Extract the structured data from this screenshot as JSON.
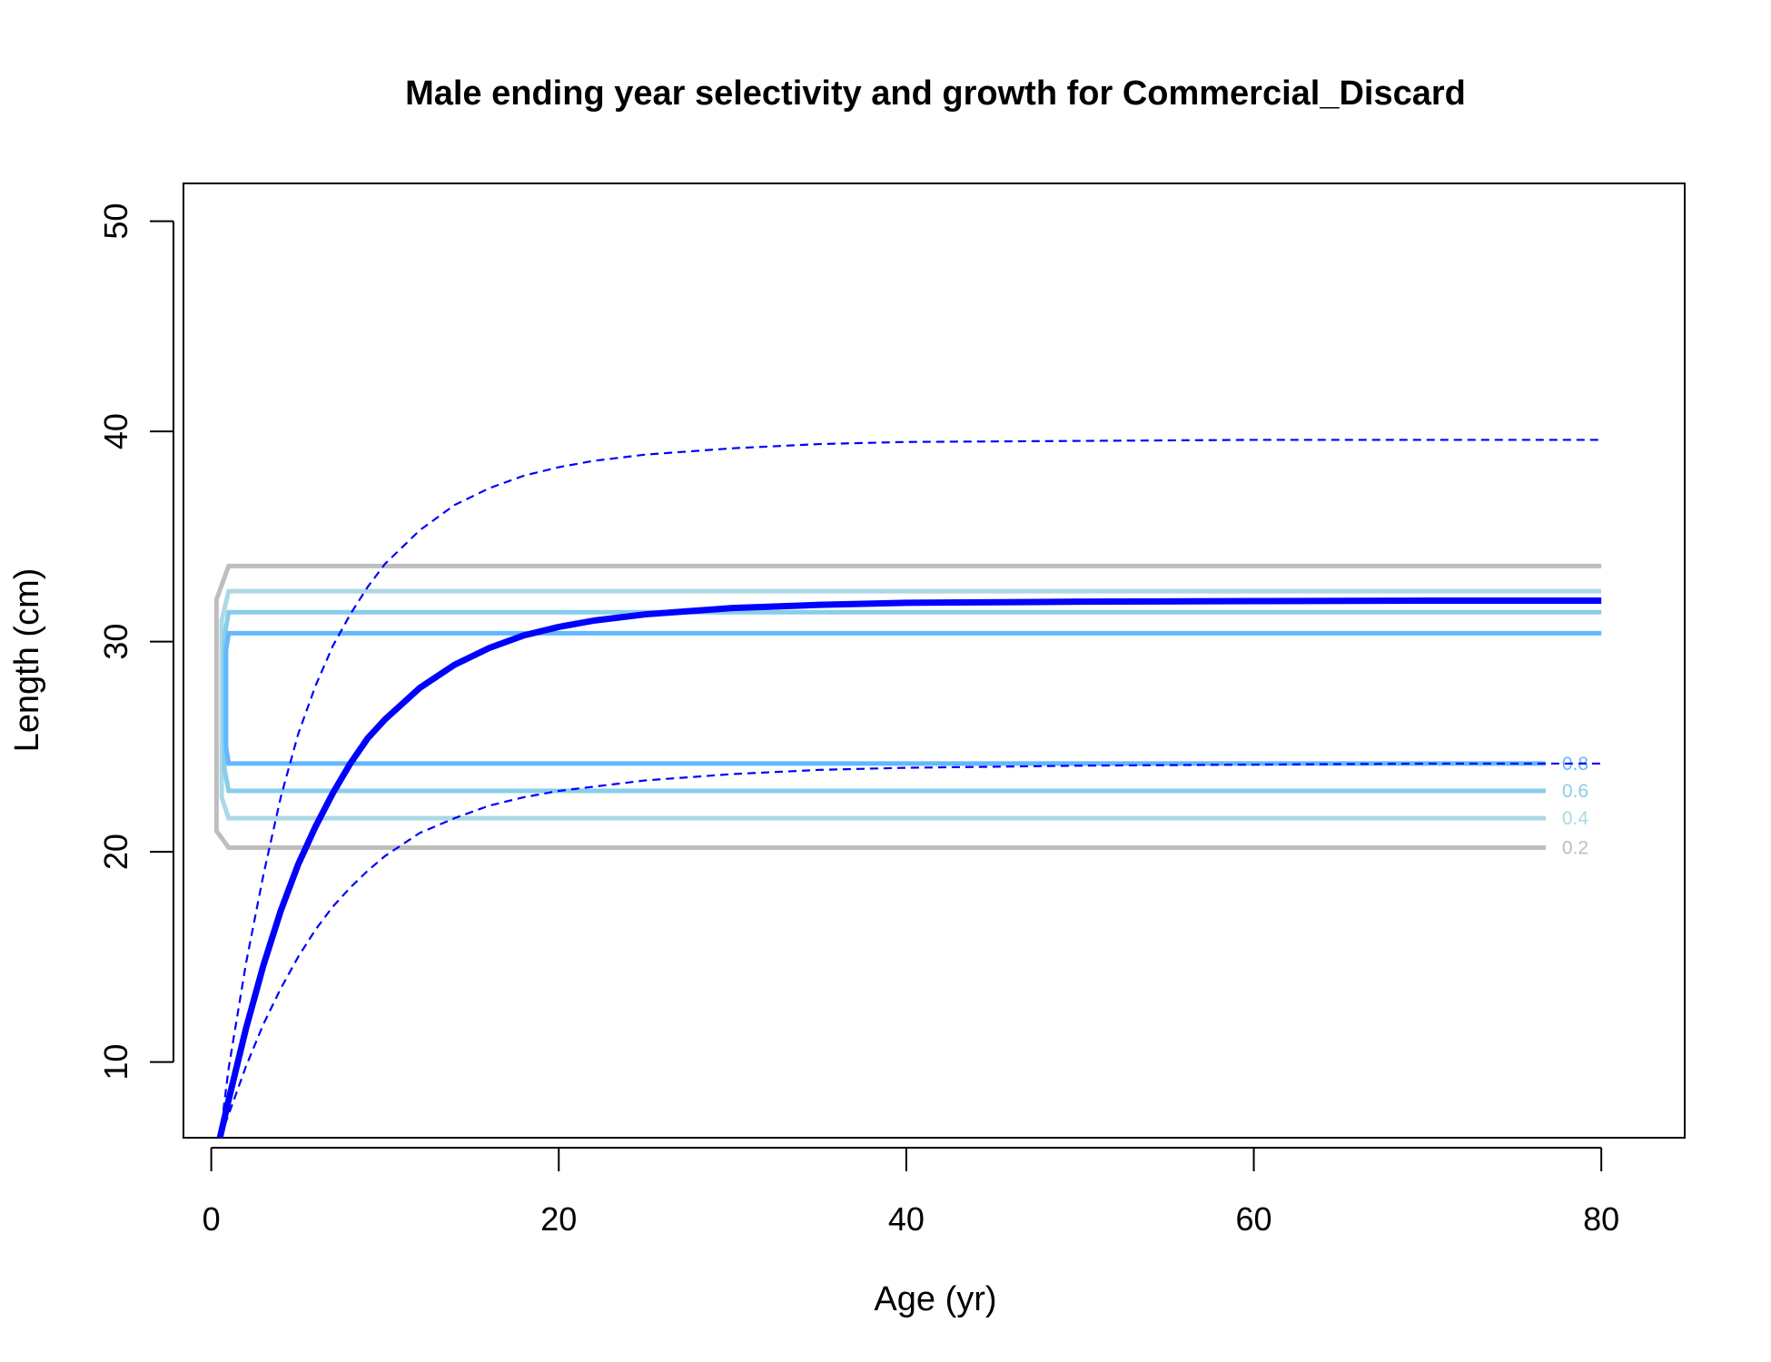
{
  "chart_data": {
    "type": "line",
    "title": "Male ending year selectivity and growth for Commercial_Discard",
    "xlabel": "Age (yr)",
    "ylabel": "Length (cm)",
    "xlim": [
      -1.6,
      84.8
    ],
    "ylim": [
      6.4,
      51.8
    ],
    "xticks": [
      0,
      20,
      40,
      60,
      80
    ],
    "yticks": [
      10,
      20,
      30,
      40,
      50
    ],
    "grid": false,
    "growth_curve": {
      "color": "#0000FF",
      "x": [
        0.5,
        1,
        2,
        3,
        4,
        5,
        6,
        7,
        8,
        9,
        10,
        12,
        14,
        16,
        18,
        20,
        22,
        25,
        30,
        35,
        40,
        50,
        60,
        70,
        80
      ],
      "mean": [
        6.4,
        8.2,
        11.6,
        14.6,
        17.2,
        19.4,
        21.2,
        22.8,
        24.2,
        25.4,
        26.3,
        27.8,
        28.9,
        29.7,
        30.3,
        30.7,
        31.0,
        31.3,
        31.6,
        31.75,
        31.85,
        31.9,
        31.93,
        31.95,
        31.95
      ],
      "upper": [
        6.4,
        9.7,
        14.7,
        18.9,
        22.6,
        25.6,
        27.9,
        29.8,
        31.3,
        32.6,
        33.7,
        35.3,
        36.5,
        37.3,
        37.9,
        38.3,
        38.6,
        38.9,
        39.2,
        39.4,
        39.5,
        39.55,
        39.6,
        39.6,
        39.6
      ],
      "lower": [
        6.4,
        7.5,
        9.8,
        11.8,
        13.5,
        15.0,
        16.3,
        17.4,
        18.3,
        19.1,
        19.8,
        20.9,
        21.6,
        22.2,
        22.6,
        22.9,
        23.1,
        23.4,
        23.7,
        23.9,
        24.0,
        24.1,
        24.15,
        24.2,
        24.2
      ]
    },
    "selectivity_contours": [
      {
        "level": "0.2",
        "color": "#BEBEBE",
        "lower": 20.2,
        "upper": 33.6,
        "bulge_low": 21.0,
        "bulge_high": 32.0,
        "bulge_x": 0.3
      },
      {
        "level": "0.4",
        "color": "#ADD8E6",
        "lower": 21.6,
        "upper": 32.4,
        "bulge_low": 22.6,
        "bulge_high": 31.0,
        "bulge_x": 0.6
      },
      {
        "level": "0.6",
        "color": "#87CEEB",
        "lower": 22.9,
        "upper": 31.4,
        "bulge_low": 24.0,
        "bulge_high": 30.2,
        "bulge_x": 0.75
      },
      {
        "level": "0.8",
        "color": "#63B8FF",
        "lower": 24.2,
        "upper": 30.4,
        "bulge_low": 25.0,
        "bulge_high": 29.6,
        "bulge_x": 0.85
      }
    ],
    "contour_x_range": [
      1,
      80
    ]
  }
}
